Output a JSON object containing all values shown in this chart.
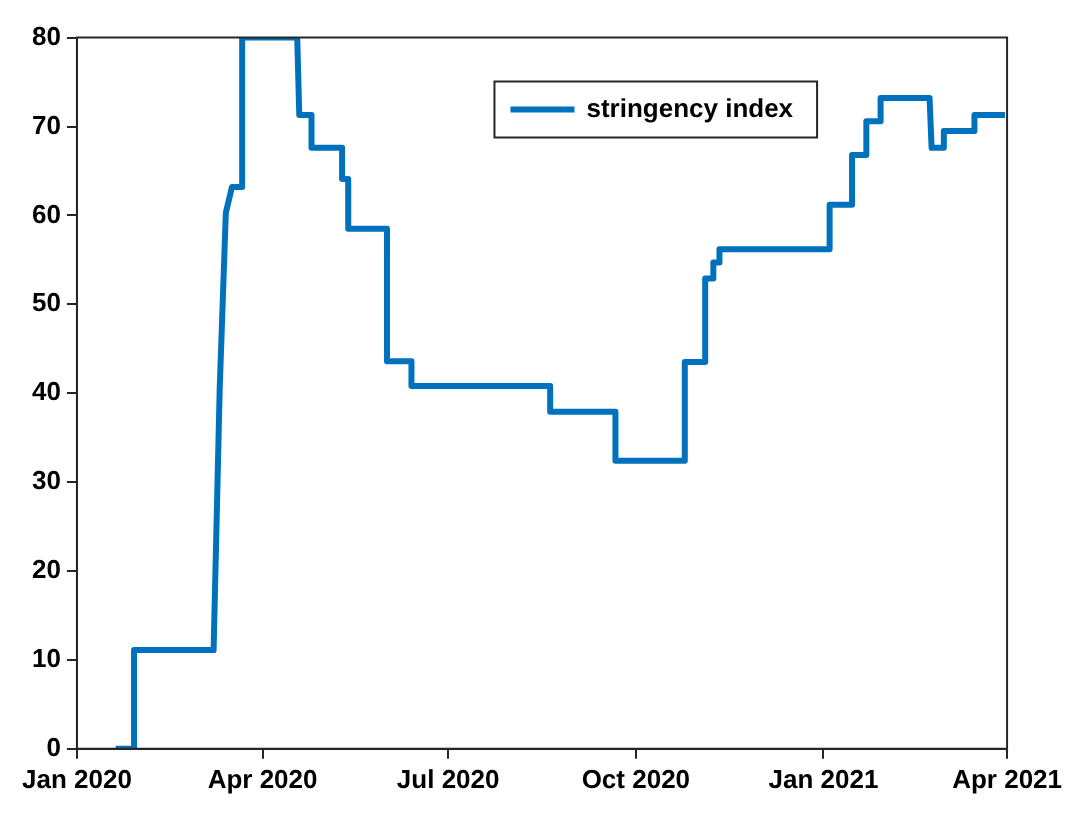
{
  "chart_data": {
    "type": "line",
    "x": [
      "2020-01-20",
      "2020-01-29",
      "2020-01-29",
      "2020-03-08",
      "2020-03-11",
      "2020-03-14",
      "2020-03-14",
      "2020-03-17",
      "2020-03-22",
      "2020-03-22",
      "2020-04-18",
      "2020-04-19",
      "2020-04-25",
      "2020-04-25",
      "2020-05-10",
      "2020-05-10",
      "2020-05-13",
      "2020-05-13",
      "2020-06-01",
      "2020-06-01",
      "2020-06-13",
      "2020-06-13",
      "2020-08-20",
      "2020-08-20",
      "2020-09-21",
      "2020-09-21",
      "2020-10-25",
      "2020-10-25",
      "2020-11-04",
      "2020-11-04",
      "2020-11-08",
      "2020-11-08",
      "2020-11-11",
      "2020-11-11",
      "2021-01-04",
      "2021-01-04",
      "2021-01-15",
      "2021-01-15",
      "2021-01-22",
      "2021-01-22",
      "2021-01-29",
      "2021-01-29",
      "2021-02-22",
      "2021-02-23",
      "2021-03-01",
      "2021-03-01",
      "2021-03-16",
      "2021-03-16",
      "2021-03-31"
    ],
    "series": [
      {
        "name": "stringency index",
        "color": "#0072bd",
        "values": [
          0,
          0,
          11.1,
          11.1,
          40.6,
          60.3,
          60.3,
          63.2,
          63.2,
          80,
          80,
          71.3,
          71.3,
          67.6,
          67.6,
          64.1,
          64.1,
          58.5,
          58.5,
          43.6,
          43.6,
          40.8,
          40.8,
          37.9,
          37.9,
          32.4,
          32.4,
          43.5,
          43.5,
          52.9,
          52.9,
          54.7,
          54.7,
          56.2,
          56.2,
          61.2,
          61.2,
          66.8,
          66.8,
          70.6,
          70.6,
          73.2,
          73.2,
          67.6,
          67.6,
          69.5,
          69.5,
          71.3,
          71.3
        ]
      }
    ],
    "xlim": [
      "2020-01",
      "2021-04"
    ],
    "xticks": [
      {
        "value": "2020-01",
        "label": "Jan 2020"
      },
      {
        "value": "2020-04",
        "label": "Apr 2020"
      },
      {
        "value": "2020-07",
        "label": "Jul 2020"
      },
      {
        "value": "2020-10",
        "label": "Oct 2020"
      },
      {
        "value": "2021-01",
        "label": "Jan 2021"
      },
      {
        "value": "2021-04",
        "label": "Apr 2021"
      }
    ],
    "ylim": [
      0,
      80
    ],
    "yticks": [
      0,
      10,
      20,
      30,
      40,
      50,
      60,
      70,
      80
    ],
    "legend": "top right",
    "grid": false,
    "marker": "none",
    "line_style": "solid"
  }
}
